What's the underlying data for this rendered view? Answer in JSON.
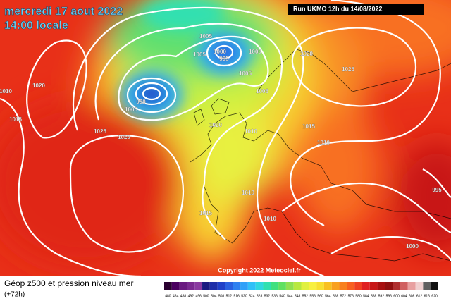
{
  "header": {
    "date": "mercredi 17 aout 2022",
    "time": "14:00 locale",
    "run": "Run UKMO 12h du 14/08/2022"
  },
  "copyright": "Copyright 2022 Meteociel.fr",
  "footer": {
    "title": "Géop z500 et pression niveau mer",
    "lead": "(+72h)"
  },
  "isobar_labels": [
    "1005",
    "1005",
    "1000",
    "995",
    "1000",
    "1005",
    "1020",
    "1025",
    "1005",
    "1020",
    "1010",
    "1015",
    "990",
    "1005",
    "1025",
    "1020",
    "1020",
    "1010",
    "1015",
    "1010",
    "1010",
    "1015",
    "1010",
    "1000",
    "995"
  ],
  "scale": {
    "labels": [
      480,
      484,
      488,
      492,
      496,
      500,
      504,
      508,
      512,
      516,
      520,
      524,
      528,
      532,
      536,
      540,
      544,
      548,
      552,
      556,
      560,
      564,
      568,
      572,
      576,
      580,
      584,
      588,
      592,
      596,
      600,
      604,
      608,
      612,
      616,
      620
    ],
    "colors": [
      "#2a0030",
      "#4b0060",
      "#6a1a80",
      "#7a2a90",
      "#8a3aa0",
      "#1a1a80",
      "#1e2ea8",
      "#2040c8",
      "#2a60e0",
      "#2f80f0",
      "#30a0f8",
      "#30c0f8",
      "#30d8e0",
      "#30e0b0",
      "#40e080",
      "#60e060",
      "#90e050",
      "#b8e840",
      "#e0f040",
      "#f8f040",
      "#f8e030",
      "#f8c020",
      "#f8a020",
      "#f88020",
      "#f86020",
      "#f04020",
      "#e02020",
      "#c81818",
      "#a81010",
      "#901010",
      "#b03030",
      "#d06060",
      "#e8a0a0",
      "#f0d0d0",
      "#606060",
      "#101010"
    ]
  }
}
